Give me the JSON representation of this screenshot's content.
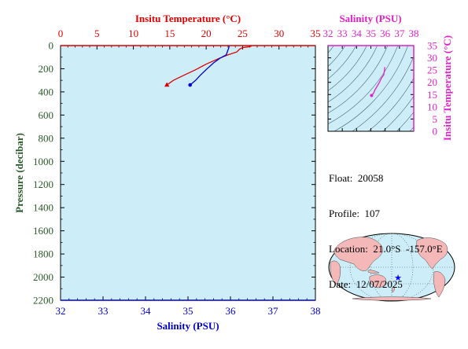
{
  "colors": {
    "temperature": "#dd0000",
    "salinity": "#0000cc",
    "ts": "#e020c8",
    "axis_pressure": "#2a5a2a",
    "plot_bg": "#cdeef9",
    "land": "#f4b8b8",
    "ocean": "#cdeef9",
    "float_marker": "#0000ff"
  },
  "info": {
    "float_label": "Float:",
    "float_value": "20058",
    "profile_label": "Profile:",
    "profile_value": "107",
    "location_label": "Location:",
    "location_value": "21.0°S  -157.0°E",
    "date_label": "Date:",
    "date_value": "12/07/2025"
  },
  "chart_data": [
    {
      "type": "line",
      "xlabel_top": "Insitu Temperature (°C)",
      "xlabel_bottom": "Salinity (PSU)",
      "ylabel": "Pressure (decibar)",
      "xlim_temperature": [
        0,
        35
      ],
      "xlim_salinity": [
        32,
        38
      ],
      "ylim": [
        0,
        2200
      ],
      "y_reversed": true,
      "temperature_ticks": [
        0,
        5,
        10,
        15,
        20,
        25,
        30,
        35
      ],
      "salinity_ticks": [
        32,
        33,
        34,
        35,
        36,
        37,
        38
      ],
      "pressure_ticks": [
        0,
        200,
        400,
        600,
        800,
        1000,
        1200,
        1400,
        1600,
        1800,
        2000,
        2200
      ],
      "series": [
        {
          "name": "Insitu Temperature (°C)",
          "points": [
            [
              26.2,
              5
            ],
            [
              25.9,
              10
            ],
            [
              25.0,
              18
            ],
            [
              24.6,
              30
            ],
            [
              24.2,
              55
            ],
            [
              23.0,
              80
            ],
            [
              21.8,
              110
            ],
            [
              20.0,
              160
            ],
            [
              18.5,
              210
            ],
            [
              16.8,
              260
            ],
            [
              15.5,
              300
            ],
            [
              14.6,
              340
            ]
          ],
          "marker": "triangle"
        },
        {
          "name": "Salinity (PSU)",
          "points": [
            [
              35.97,
              5
            ],
            [
              35.96,
              20
            ],
            [
              35.93,
              50
            ],
            [
              35.9,
              80
            ],
            [
              35.75,
              110
            ],
            [
              35.6,
              150
            ],
            [
              35.45,
              200
            ],
            [
              35.28,
              260
            ],
            [
              35.18,
              300
            ],
            [
              35.05,
              340
            ]
          ],
          "marker": "circle"
        }
      ]
    },
    {
      "type": "line",
      "xlabel": "Salinity (PSU)",
      "ylabel": "Insitu Temperature (°C)",
      "xlim": [
        32,
        38
      ],
      "ylim": [
        0,
        35
      ],
      "x_ticks": [
        32,
        33,
        34,
        35,
        36,
        37,
        38
      ],
      "y_ticks": [
        0,
        5,
        10,
        15,
        20,
        25,
        30,
        35
      ],
      "series": [
        {
          "points": [
            [
              35.05,
              14.6
            ],
            [
              35.18,
              15.5
            ],
            [
              35.28,
              16.8
            ],
            [
              35.45,
              18.5
            ],
            [
              35.6,
              20.0
            ],
            [
              35.75,
              21.8
            ],
            [
              35.9,
              23.0
            ],
            [
              35.93,
              24.2
            ],
            [
              35.96,
              25.0
            ],
            [
              35.97,
              26.2
            ]
          ],
          "marker": "circle"
        }
      ]
    }
  ]
}
